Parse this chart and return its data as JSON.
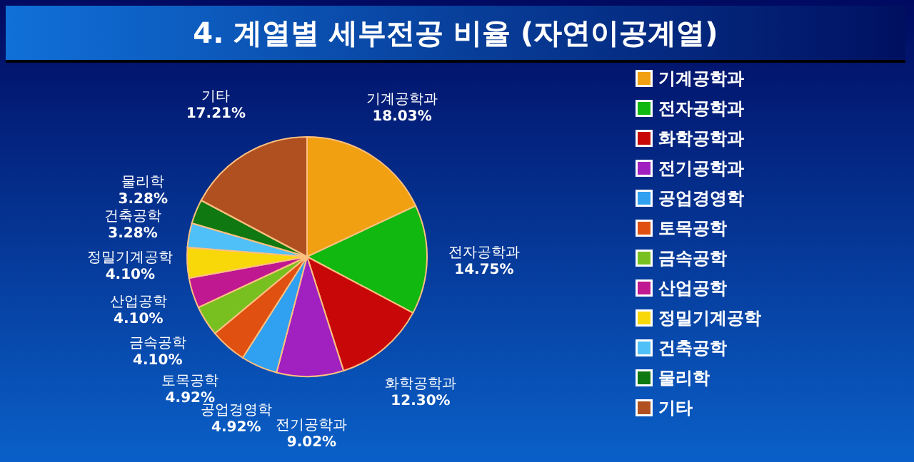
{
  "chart_data": {
    "type": "pie",
    "title": "4. 계열별 세부전공 비율 (자연이공계열)",
    "categories": [
      "기계공학과",
      "전자공학과",
      "화학공학과",
      "전기공학과",
      "공업경영학",
      "토목공학",
      "금속공학",
      "산업공학",
      "정밀기계공학",
      "건축공학",
      "물리학",
      "기타"
    ],
    "values": [
      18.03,
      14.75,
      12.3,
      9.02,
      4.92,
      4.92,
      4.1,
      4.1,
      4.1,
      3.28,
      3.28,
      17.21
    ],
    "value_labels": [
      "18.03%",
      "14.75%",
      "12.30%",
      "9.02%",
      "4.92%",
      "4.92%",
      "4.10%",
      "4.10%",
      "4.10%",
      "3.28%",
      "3.28%",
      "17.21%"
    ],
    "colors": [
      "#f0a010",
      "#10b810",
      "#c80808",
      "#a020c0",
      "#30a0f0",
      "#e05010",
      "#78c020",
      "#c01890",
      "#f8d808",
      "#50c0f8",
      "#107810",
      "#b05020"
    ],
    "legend": "right"
  }
}
